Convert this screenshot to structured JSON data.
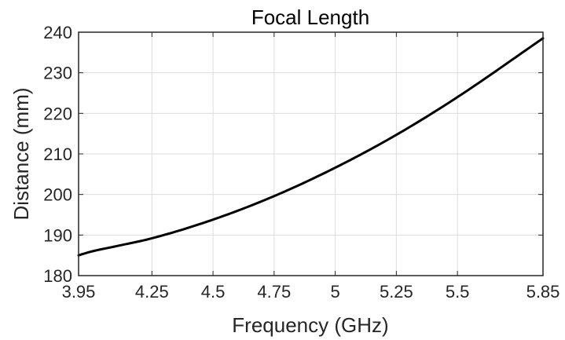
{
  "chart_data": {
    "type": "line",
    "title": "Focal Length",
    "xlabel": "Frequency (GHz)",
    "ylabel": "Distance (mm)",
    "xlim": [
      3.95,
      5.85
    ],
    "ylim": [
      180,
      240
    ],
    "xticks": [
      3.95,
      4.25,
      4.5,
      4.75,
      5,
      5.25,
      5.5,
      5.85
    ],
    "xtick_labels": [
      "3.95",
      "4.25",
      "4.5",
      "4.75",
      "5",
      "5.25",
      "5.5",
      "5.85"
    ],
    "yticks": [
      180,
      190,
      200,
      210,
      220,
      230,
      240
    ],
    "ytick_labels": [
      "180",
      "190",
      "200",
      "210",
      "220",
      "230",
      "240"
    ],
    "grid": true,
    "line_color": "#000000",
    "grid_color": "#dcdcdc",
    "series": [
      {
        "x": [
          3.95,
          4.0,
          4.1,
          4.25,
          4.5,
          4.75,
          5.0,
          5.25,
          5.5,
          5.85
        ],
        "values": [
          185.0,
          185.9,
          187.2,
          189.2,
          193.8,
          199.6,
          206.6,
          214.7,
          224.0,
          238.5
        ]
      }
    ]
  }
}
